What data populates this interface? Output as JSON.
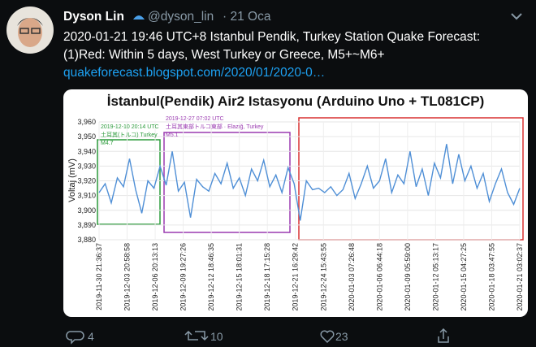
{
  "tweet": {
    "name": "Dyson Lin",
    "handle": "@dyson_lin",
    "date": "· 21 Oca",
    "lines": [
      "2020-01-21 19:46 UTC+8 Istanbul Pendik, Turkey Station Quake Forecast:",
      "(1)Red: Within 5 days, West Turkey or Greece, M5+~M6+"
    ],
    "link": "quakeforecast.blogspot.com/2020/01/2020-0…"
  },
  "image": {
    "chart": {
      "type": "line",
      "title": "İstanbul(Pendik) Air2 Istasyonu (Arduino Uno + TL081CP)",
      "y_label": "Voltaj (mV)",
      "color": "#4f8fd6",
      "ylim": [
        3880,
        3960
      ],
      "yticks": [
        {
          "value": 3880,
          "label": "3,880"
        },
        {
          "value": 3890,
          "label": "3,890"
        },
        {
          "value": 3900,
          "label": "3,900"
        },
        {
          "value": 3910,
          "label": "3,910"
        },
        {
          "value": 3920,
          "label": "3,920"
        },
        {
          "value": 3930,
          "label": "3,930"
        },
        {
          "value": 3940,
          "label": "3,940"
        },
        {
          "value": 3950,
          "label": "3,950"
        },
        {
          "value": 3960,
          "label": "3,960"
        }
      ],
      "categories": [
        "2019-11-30 21:36:37",
        "2019-12-03 20:58:58",
        "2019-12-06 20:13:13",
        "2019-12-09 19:27:26",
        "2019-12-12 18:46:35",
        "2019-12-15 18:01:31",
        "2019-12-18 17:15:28",
        "2019-12-21 16:29:42",
        "2019-12-24 15:43:55",
        "2020-01-03 07:26:48",
        "2020-01-06 06:44:18",
        "2020-01-09 05:59:00",
        "2020-01-12 05:13:17",
        "2020-01-15 04:27:25",
        "2020-01-18 03:47:55",
        "2020-01-21 03:02:37"
      ],
      "values": [
        3912,
        3918,
        3905,
        3922,
        3916,
        3935,
        3914,
        3898,
        3920,
        3915,
        3930,
        3917,
        3940,
        3913,
        3919,
        3895,
        3921,
        3916,
        3913,
        3925,
        3918,
        3932,
        3915,
        3922,
        3910,
        3928,
        3920,
        3934,
        3916,
        3924,
        3912,
        3929,
        3918,
        3893,
        3920,
        3914,
        3915,
        3912,
        3916,
        3910,
        3914,
        3925,
        3908,
        3918,
        3930,
        3915,
        3920,
        3935,
        3912,
        3924,
        3918,
        3940,
        3916,
        3928,
        3910,
        3932,
        3922,
        3945,
        3918,
        3938,
        3920,
        3930,
        3915,
        3925,
        3906,
        3918,
        3928,
        3912,
        3904,
        3915
      ],
      "annotations": {
        "green": [
          "2019-12-10 20:14 UTC",
          "土耳其(トルコ) Turkey",
          "M4.7"
        ],
        "purple": [
          "2019-12-27 07:02 UTC",
          "土耳其東部トルコ東部 · Elazığ, Turkey",
          "M5.1"
        ]
      }
    }
  },
  "actions": {
    "replies": "4",
    "retweets": "10",
    "likes": "23"
  }
}
